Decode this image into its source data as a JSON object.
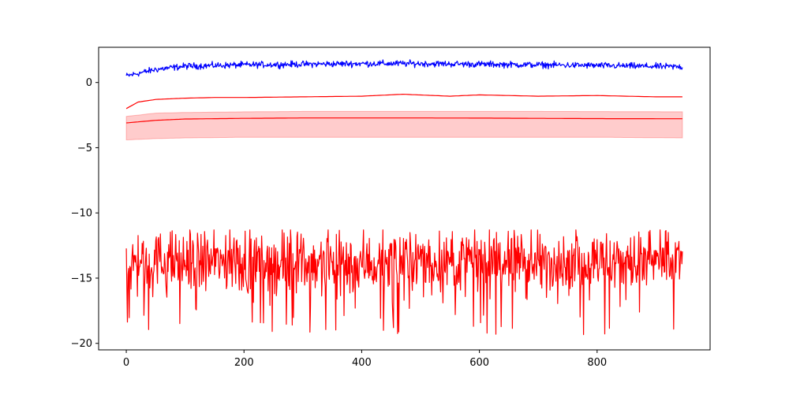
{
  "chart_data": {
    "type": "line",
    "title": "",
    "xlabel": "",
    "ylabel": "",
    "xlim": [
      -47,
      992
    ],
    "ylim": [
      -20.5,
      2.7
    ],
    "x_ticks": [
      0,
      200,
      400,
      600,
      800
    ],
    "x_tick_labels": [
      "0",
      "200",
      "400",
      "600",
      "800"
    ],
    "y_ticks": [
      0,
      -5,
      -10,
      -15,
      -20
    ],
    "y_tick_labels": [
      "0",
      "−5",
      "−10",
      "−15",
      "−20"
    ],
    "grid": false,
    "legend": "none",
    "series": [
      {
        "color": "#0000ff",
        "style": "noisy",
        "x": [
          0,
          50,
          100,
          200,
          300,
          400,
          500,
          600,
          700,
          800,
          945
        ],
        "values": [
          0.5,
          1.0,
          1.25,
          1.35,
          1.4,
          1.45,
          1.45,
          1.4,
          1.35,
          1.3,
          1.2
        ],
        "noise_amplitude": 0.12
      },
      {
        "color": "#ff0000",
        "style": "smooth",
        "x": [
          0,
          20,
          50,
          100,
          150,
          200,
          300,
          400,
          470,
          550,
          600,
          700,
          800,
          900,
          945
        ],
        "values": [
          -2.0,
          -1.5,
          -1.3,
          -1.2,
          -1.15,
          -1.15,
          -1.1,
          -1.05,
          -0.9,
          -1.05,
          -0.95,
          -1.05,
          -1.0,
          -1.1,
          -1.1
        ]
      },
      {
        "color": "#ff0000",
        "style": "band",
        "fill": "#ffcccc",
        "x": [
          0,
          50,
          100,
          200,
          300,
          400,
          500,
          600,
          700,
          800,
          945
        ],
        "values": [
          -3.1,
          -2.9,
          -2.8,
          -2.75,
          -2.72,
          -2.72,
          -2.72,
          -2.73,
          -2.75,
          -2.77,
          -2.78
        ],
        "upper": [
          -2.6,
          -2.35,
          -2.3,
          -2.25,
          -2.22,
          -2.22,
          -2.22,
          -2.22,
          -2.22,
          -2.23,
          -2.25
        ],
        "lower": [
          -4.4,
          -4.3,
          -4.25,
          -4.2,
          -4.2,
          -4.2,
          -4.2,
          -4.2,
          -4.2,
          -4.2,
          -4.25
        ]
      },
      {
        "color": "#ff0000",
        "style": "noisy",
        "x": [
          0,
          945
        ],
        "values": [
          -13.8,
          -13.8
        ],
        "noise_amplitude": 1.2,
        "min": -19.4,
        "max": -11.3
      }
    ]
  }
}
